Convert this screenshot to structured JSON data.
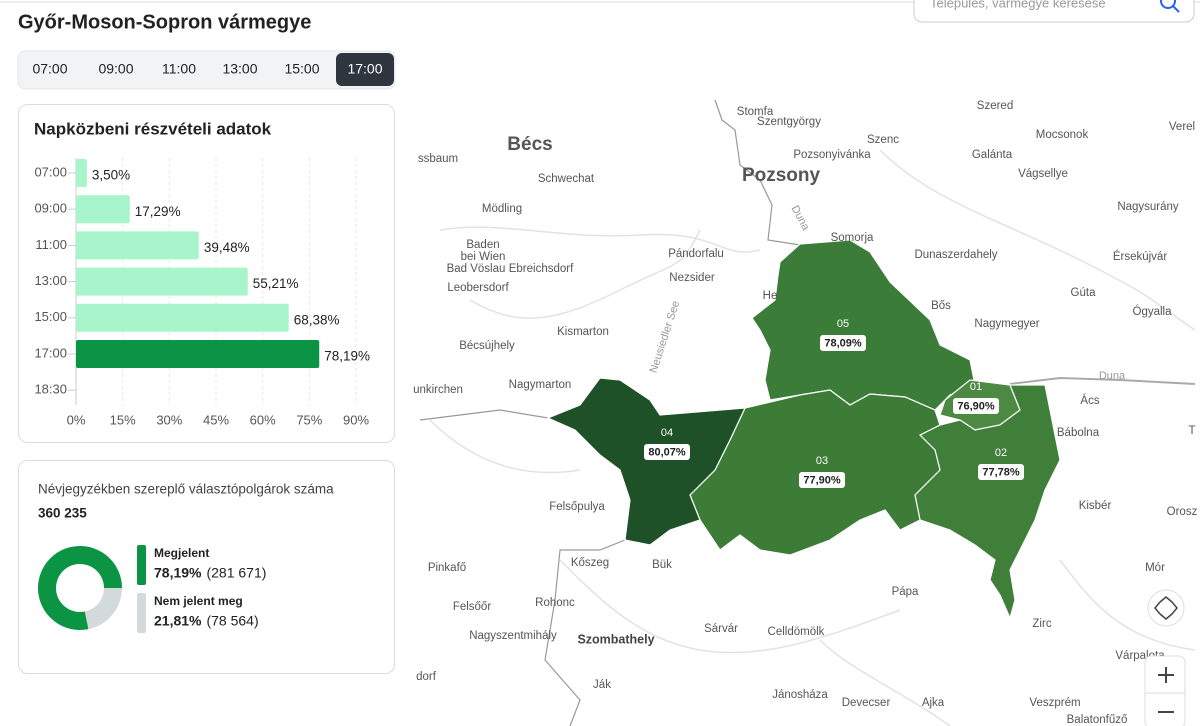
{
  "header": {
    "title": "Győr-Moson-Sopron vármegye",
    "search_placeholder": "Település, vármegye keresése"
  },
  "time_tabs": {
    "items": [
      "07:00",
      "09:00",
      "11:00",
      "13:00",
      "15:00",
      "17:00"
    ],
    "active": "17:00"
  },
  "turnout_chart": {
    "type": "bar",
    "orientation": "horizontal",
    "title": "Napközbeni részvételi adatok",
    "categories": [
      "07:00",
      "09:00",
      "11:00",
      "13:00",
      "15:00",
      "17:00",
      "18:30"
    ],
    "values": [
      3.5,
      17.29,
      39.48,
      55.21,
      68.38,
      78.19,
      null
    ],
    "value_labels": [
      "3,50%",
      "17,29%",
      "39,48%",
      "55,21%",
      "68,38%",
      "78,19%",
      null
    ],
    "color": "#a9f5cb",
    "highlight_color": "#0a9443",
    "highlight_category": "17:00",
    "xlim": [
      0,
      90
    ],
    "xticks": [
      {
        "value": 0,
        "label": "0%"
      },
      {
        "value": 15,
        "label": "15%"
      },
      {
        "value": 30,
        "label": "30%"
      },
      {
        "value": 45,
        "label": "45%"
      },
      {
        "value": 60,
        "label": "60%"
      },
      {
        "value": 75,
        "label": "75%"
      },
      {
        "value": 90,
        "label": "90%"
      }
    ],
    "grid": true
  },
  "registered": {
    "label": "Névjegyzékben szereplő választópolgárok száma",
    "total": "360 235",
    "items": [
      {
        "name": "Megjelent",
        "percent": 78.19,
        "percent_label": "78,19%",
        "count": 281671,
        "count_label": "(281 671)",
        "color": "#0a9443"
      },
      {
        "name": "Nem jelent meg",
        "percent": 21.81,
        "percent_label": "21,81%",
        "count": 78564,
        "count_label": "(78 564)",
        "color": "#d3dadb"
      }
    ]
  },
  "map": {
    "districts": [
      {
        "code": "05",
        "turnout": "78,09%"
      },
      {
        "code": "01",
        "turnout": "76,90%"
      },
      {
        "code": "04",
        "turnout": "80,07%"
      },
      {
        "code": "03",
        "turnout": "77,90%"
      },
      {
        "code": "02",
        "turnout": "77,78%"
      }
    ],
    "places": [
      "Stomfa",
      "Szentgyörgy",
      "Szered",
      "Mocsonok",
      "Verel",
      "Szenc",
      "Bécs",
      "ssbaum",
      "Schwechat",
      "Pozsonyivánka",
      "Galánta",
      "Pozsony",
      "Vágsellye",
      "Mödling",
      "Nagysurány",
      "Duna",
      "Somorja",
      "Baden",
      "bei Wien",
      "Bad Vöslau",
      "Ebreichsdorf",
      "Pándorfalu",
      "Dunaszerdahely",
      "Érsekújvár",
      "Nezsider",
      "Leobersdorf",
      "Gúta",
      "He",
      "Bős",
      "Ógyalla",
      "Neusiedler See",
      "Kismarton",
      "Nagymegyer",
      "Bécsújhely",
      "Duna",
      "Nagymarton",
      "unkirchen",
      "Ács",
      "Bábolna",
      "T",
      "Kisbér",
      "Felsőpulya",
      "Orosz",
      "Kőszeg",
      "Bük",
      "Pinkafő",
      "Mór",
      "Pápa",
      "Felsőőr",
      "Rohonc",
      "Zirc",
      "Nagyszentmihály",
      "Szombathely",
      "Sárvár",
      "Celldömölk",
      "Várpalota",
      "dorf",
      "Ják",
      "Jánosháza",
      "Devecser",
      "Ajka",
      "Veszprém",
      "Balatonfűző"
    ]
  }
}
